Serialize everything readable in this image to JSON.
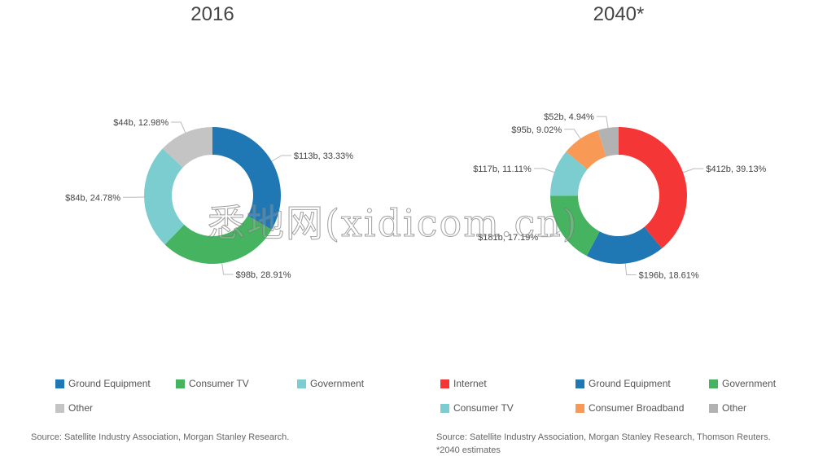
{
  "chart_data": [
    {
      "type": "pie",
      "subtype": "donut",
      "title": "2016",
      "categories": [
        "Ground Equipment",
        "Consumer TV",
        "Government",
        "Other"
      ],
      "values": [
        113,
        98,
        84,
        44
      ],
      "percents": [
        33.33,
        28.91,
        24.78,
        12.98
      ],
      "labels": [
        "$113b, 33.33%",
        "$98b, 28.91%",
        "$84b, 24.78%",
        "$44b, 12.98%"
      ],
      "colors": [
        "#1f77b4",
        "#45b35f",
        "#7ccdcf",
        "#c4c4c4"
      ],
      "legend": [
        "Ground Equipment",
        "Consumer TV",
        "Government",
        "Other"
      ],
      "legend_colors": [
        "#1f77b4",
        "#45b35f",
        "#7ccdcf",
        "#c4c4c4"
      ],
      "legend_position": "bottom",
      "source": "Source: Satellite Industry Association, Morgan Stanley Research."
    },
    {
      "type": "pie",
      "subtype": "donut",
      "title": "2040*",
      "categories": [
        "Internet",
        "Ground Equipment",
        "Government",
        "Consumer TV",
        "Consumer Broadband",
        "Other"
      ],
      "values": [
        412,
        196,
        181,
        117,
        95,
        52
      ],
      "percents": [
        39.13,
        18.61,
        17.19,
        11.11,
        9.02,
        4.94
      ],
      "labels": [
        "$412b, 39.13%",
        "$196b, 18.61%",
        "$181b, 17.19%",
        "$117b, 11.11%",
        "$95b, 9.02%",
        "$52b, 4.94%"
      ],
      "colors": [
        "#f53636",
        "#1f77b4",
        "#45b35f",
        "#7ccdcf",
        "#f89a55",
        "#b2b2b2"
      ],
      "legend": [
        "Internet",
        "Ground Equipment",
        "Government",
        "Consumer TV",
        "Consumer Broadband",
        "Other"
      ],
      "legend_colors": [
        "#f53636",
        "#1f77b4",
        "#45b35f",
        "#7ccdcf",
        "#f89a55",
        "#b2b2b2"
      ],
      "legend_position": "bottom",
      "source": "Source: Satellite Industry Association, Morgan Stanley Research, Thomson Reuters. *2040 estimates"
    }
  ],
  "watermark": "悉地网(xidicom.cn)"
}
